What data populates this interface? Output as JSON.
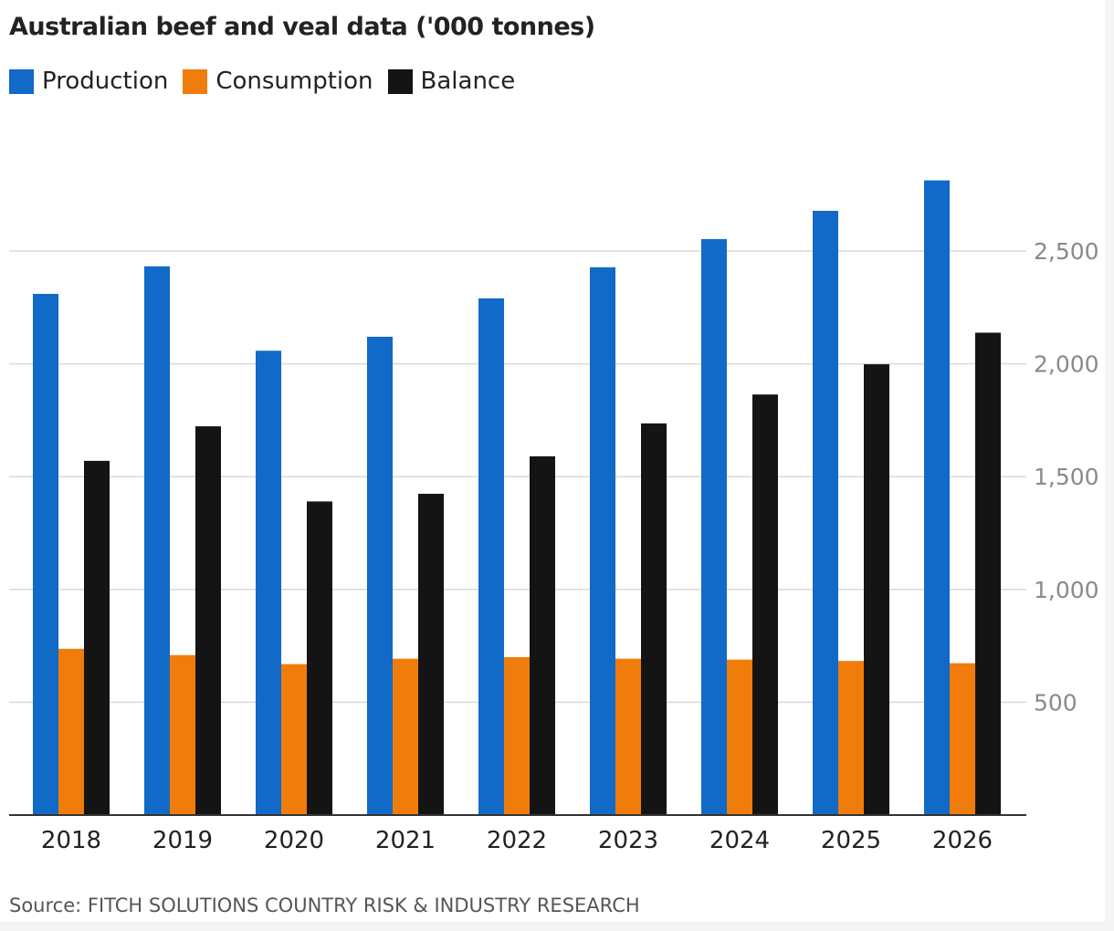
{
  "chart_data": {
    "type": "bar",
    "title": "Australian beef and veal data ('000 tonnes)",
    "source": "Source: FITCH SOLUTIONS COUNTRY RISK & INDUSTRY RESEARCH",
    "categories": [
      "2018",
      "2019",
      "2020",
      "2021",
      "2022",
      "2023",
      "2024",
      "2025",
      "2026"
    ],
    "series": [
      {
        "name": "Production",
        "color": "#1169c8",
        "values": [
          2310,
          2432,
          2058,
          2120,
          2290,
          2428,
          2553,
          2678,
          2813
        ]
      },
      {
        "name": "Consumption",
        "color": "#f07c0b",
        "values": [
          737,
          709,
          669,
          693,
          700,
          693,
          689,
          683,
          673
        ]
      },
      {
        "name": "Balance",
        "color": "#141414",
        "values": [
          1570,
          1723,
          1390,
          1424,
          1590,
          1736,
          1864,
          1998,
          2138
        ]
      }
    ],
    "yticks": [
      500,
      1000,
      1500,
      2000,
      2500
    ],
    "ytick_labels": [
      "500",
      "1,000",
      "1,500",
      "2,000",
      "2,500"
    ],
    "ylim": [
      0,
      2900
    ],
    "yaxis_position": "right",
    "grid": true,
    "legend_position": "top-left",
    "xlabel": "",
    "ylabel": ""
  }
}
